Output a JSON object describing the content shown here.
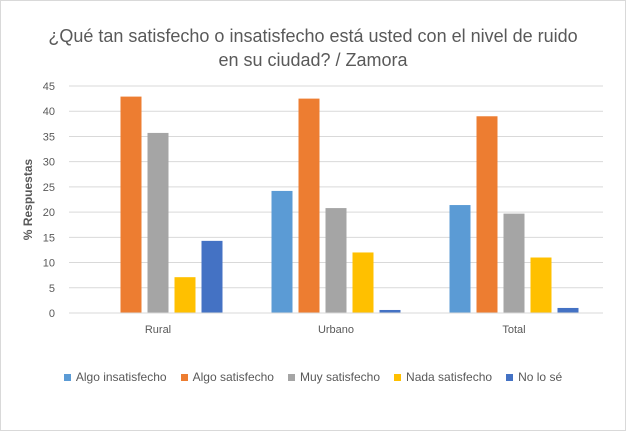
{
  "chart_data": {
    "type": "bar",
    "title": "¿Qué tan satisfecho o insatisfecho está usted con el nivel de ruido en su ciudad? / Zamora",
    "xlabel": "",
    "ylabel": "% Respuestas",
    "ylim": [
      0,
      45
    ],
    "yticks": [
      0,
      5,
      10,
      15,
      20,
      25,
      30,
      35,
      40,
      45
    ],
    "grid": true,
    "legend_position": "bottom",
    "categories": [
      "Rural",
      "Urbano",
      "Total"
    ],
    "series": [
      {
        "name": "Algo insatisfecho",
        "color": "#5b9bd5",
        "values": [
          0,
          24.2,
          21.4
        ]
      },
      {
        "name": "Algo satisfecho",
        "color": "#ed7d31",
        "values": [
          42.9,
          42.5,
          39.0
        ]
      },
      {
        "name": "Muy satisfecho",
        "color": "#a5a5a5",
        "values": [
          35.7,
          20.8,
          19.7
        ]
      },
      {
        "name": "Nada satisfecho",
        "color": "#ffc000",
        "values": [
          7.1,
          12.0,
          11.0
        ]
      },
      {
        "name": "No lo sé",
        "color": "#4472c4",
        "values": [
          14.3,
          0.6,
          1.0
        ]
      }
    ]
  }
}
